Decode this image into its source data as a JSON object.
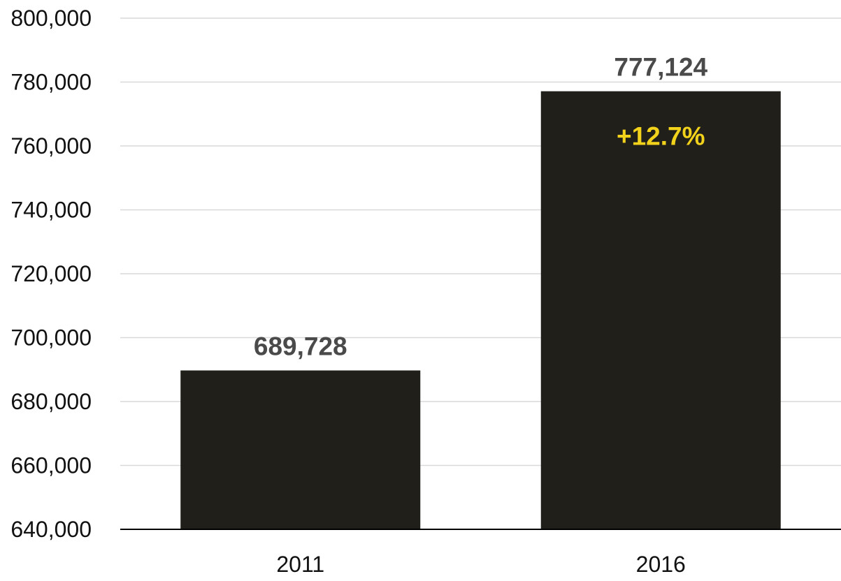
{
  "chart_data": {
    "type": "bar",
    "title": "",
    "xlabel": "",
    "ylabel": "",
    "categories": [
      "2011",
      "2016"
    ],
    "values": [
      689728,
      777124
    ],
    "data_labels": [
      "689,728",
      "777,124"
    ],
    "ylim": [
      640000,
      800000
    ],
    "yticks": [
      640000,
      660000,
      680000,
      700000,
      720000,
      740000,
      760000,
      780000,
      800000
    ],
    "ytick_labels": [
      "640,000",
      "660,000",
      "680,000",
      "700,000",
      "720,000",
      "740,000",
      "760,000",
      "780,000",
      "800,000"
    ],
    "grid": true,
    "legend": "none",
    "annotations": [
      {
        "text": "+12.7%",
        "category": "2016"
      }
    ],
    "colors": {
      "bar": "#211f1a",
      "data_label": "#4a4a4a",
      "annotation": "#f2d21b",
      "grid": "#d9d9d9",
      "axis": "#000000",
      "tick_label": "#111111"
    }
  }
}
